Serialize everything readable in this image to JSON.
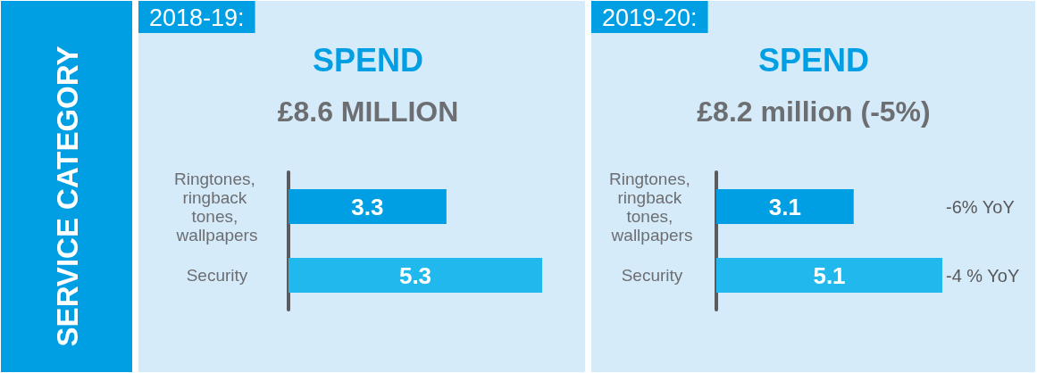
{
  "chart_data": [
    {
      "type": "bar",
      "orientation": "horizontal",
      "title": "SPEND",
      "subtitle": "£8.6 MILLION",
      "ylabel": "SERVICE CATEGORY",
      "annotations": [
        "2018-19:"
      ],
      "categories": [
        "Ringtones, ringback tones, wallpapers",
        "Security"
      ],
      "values": [
        3.3,
        5.3
      ],
      "colors": [
        "#009fe3",
        "#21b9ed"
      ],
      "data_labels": true,
      "tick_labels": "y"
    },
    {
      "type": "bar",
      "orientation": "horizontal",
      "title": "SPEND",
      "subtitle": "£8.2 million (-5%)",
      "annotations": [
        "2019-20:",
        "-6% YoY",
        "-4 % YoY"
      ],
      "categories": [
        "Ringtones, ringback tones, wallpapers",
        "Security"
      ],
      "values": [
        3.1,
        5.1
      ],
      "colors": [
        "#009fe3",
        "#21b9ed"
      ],
      "data_labels": true,
      "tick_labels": "y"
    }
  ]
}
